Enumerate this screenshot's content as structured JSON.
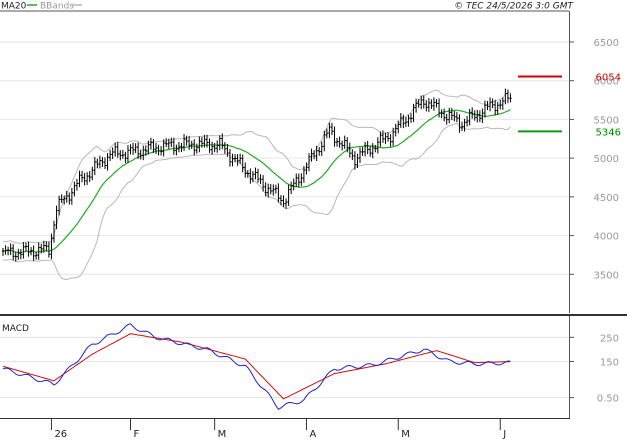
{
  "header": {
    "legend_ma": "MA20",
    "legend_bb": "BBands",
    "copyright": "© TEC 24/5/2026 3:0 GMT"
  },
  "colors": {
    "ma": "#22aa22",
    "bbands": "#b8b8b8",
    "bars": "#000000",
    "resistance": "#cc0000",
    "support": "#119911",
    "macd": "#2222cc",
    "signal": "#cc1111",
    "grid": "#e6e6e6"
  },
  "chart_data": [
    {
      "type": "candlestick",
      "title": "",
      "ylim": [
        3000,
        6900
      ],
      "yticks": [
        "3500",
        "4000",
        "4500",
        "5000",
        "5500",
        "6000",
        "6500"
      ],
      "xticks": [
        {
          "label": "26",
          "bar": 19
        },
        {
          "label": "F",
          "bar": 50
        },
        {
          "label": "M",
          "bar": 83
        },
        {
          "label": "A",
          "bar": 119
        },
        {
          "label": "M",
          "bar": 155
        },
        {
          "label": "J",
          "bar": 195
        }
      ],
      "levels": [
        {
          "name": "resistance",
          "label": "6054",
          "value": 6054
        },
        {
          "name": "support",
          "label": "5346",
          "value": 5346
        }
      ],
      "series": [
        {
          "name": "MA20"
        },
        {
          "name": "BBands"
        }
      ]
    },
    {
      "type": "line",
      "title": "MACD",
      "ylim": [
        -80,
        330
      ],
      "yticks": [
        "0.50",
        "150",
        "250"
      ],
      "series": [
        {
          "name": "MACD"
        },
        {
          "name": "Signal"
        }
      ]
    }
  ]
}
